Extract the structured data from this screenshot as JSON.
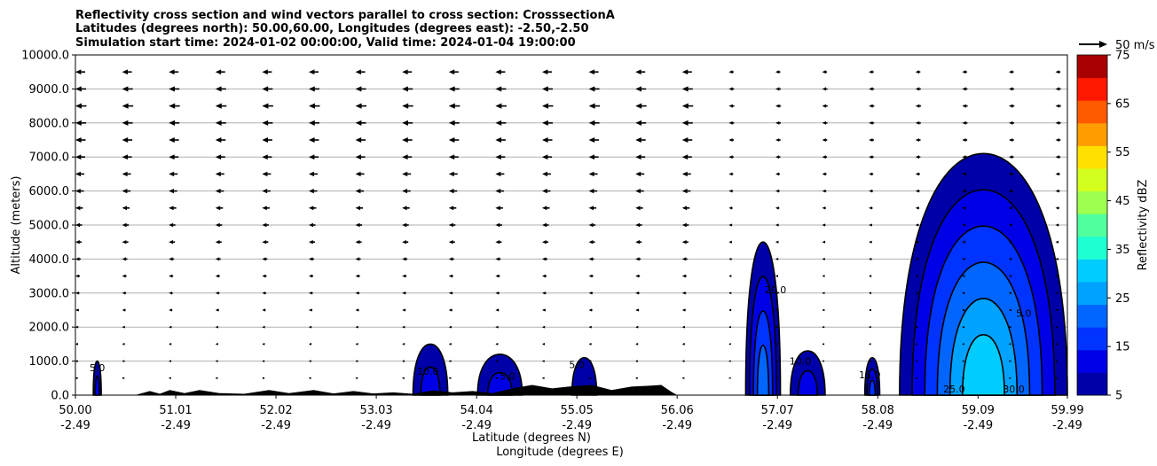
{
  "chart_data": {
    "type": "heatmap",
    "title_lines": [
      "Reflectivity cross section and wind vectors parallel to cross section: CrosssectionA",
      "Latitudes (degrees north): 50.00,60.00, Longitudes (degrees east): -2.50,-2.50",
      "Simulation start time: 2024-01-02 00:00:00, Valid time: 2024-01-04 19:00:00"
    ],
    "ylabel": "Altitude (meters)",
    "xlabel_lat": "Latitude (degrees N)",
    "xlabel_lon": "Longitude (degrees E)",
    "ylim": [
      0,
      10000
    ],
    "xlim": [
      50.0,
      59.99
    ],
    "y_ticks": [
      "0.0",
      "1000.0",
      "2000.0",
      "3000.0",
      "4000.0",
      "5000.0",
      "6000.0",
      "7000.0",
      "8000.0",
      "9000.0",
      "10000.0"
    ],
    "x_ticks": [
      {
        "lat": "50.00",
        "lon": "-2.49",
        "value": 50.0
      },
      {
        "lat": "51.01",
        "lon": "-2.49",
        "value": 51.01
      },
      {
        "lat": "52.02",
        "lon": "-2.49",
        "value": 52.02
      },
      {
        "lat": "53.03",
        "lon": "-2.49",
        "value": 53.03
      },
      {
        "lat": "54.04",
        "lon": "-2.49",
        "value": 54.04
      },
      {
        "lat": "55.05",
        "lon": "-2.49",
        "value": 55.05
      },
      {
        "lat": "56.06",
        "lon": "-2.49",
        "value": 56.06
      },
      {
        "lat": "57.07",
        "lon": "-2.49",
        "value": 57.07
      },
      {
        "lat": "58.08",
        "lon": "-2.49",
        "value": 58.08
      },
      {
        "lat": "59.09",
        "lon": "-2.49",
        "value": 59.09
      },
      {
        "lat": "59.99",
        "lon": "-2.49",
        "value": 59.99
      }
    ],
    "grid": "horizontal",
    "colorbar": {
      "label": "Reflectivity dBZ",
      "levels": [
        5,
        10,
        15,
        20,
        25,
        30,
        35,
        40,
        45,
        50,
        55,
        60,
        65,
        70,
        75
      ],
      "tick_labels": [
        "5",
        "15",
        "25",
        "35",
        "45",
        "55",
        "65",
        "75"
      ],
      "colors": [
        "#0000a8",
        "#0000e6",
        "#0033ff",
        "#0066ff",
        "#00a2ff",
        "#00ccff",
        "#1effd2",
        "#50ff9e",
        "#9eff50",
        "#d2ff1e",
        "#ffe000",
        "#ff9c00",
        "#ff5a00",
        "#ff1800",
        "#a80000"
      ]
    },
    "wind_reference": {
      "label": "50 m/s",
      "speed": 50
    },
    "wind_vectors": {
      "direction": "left",
      "levels_m": [
        500,
        1000,
        1500,
        2000,
        2500,
        3000,
        3500,
        4000,
        4500,
        5000,
        5500,
        6000,
        6500,
        7000,
        7500,
        8000,
        8500,
        9000,
        9500
      ],
      "columns_lat": [
        50.0,
        50.47,
        50.94,
        51.41,
        51.88,
        52.35,
        52.82,
        53.29,
        53.76,
        54.23,
        54.7,
        55.17,
        55.64,
        56.11,
        56.58,
        57.05,
        57.52,
        57.99,
        58.46,
        58.93,
        59.4,
        59.87
      ],
      "speed_by_level": [
        3,
        4,
        5,
        6,
        8,
        9,
        10,
        12,
        14,
        15,
        17,
        19,
        20,
        22,
        23,
        24,
        25,
        24,
        22
      ]
    },
    "terrain": [
      [
        50.0,
        0
      ],
      [
        50.6,
        0
      ],
      [
        50.75,
        120
      ],
      [
        50.85,
        40
      ],
      [
        50.95,
        150
      ],
      [
        51.1,
        60
      ],
      [
        51.25,
        150
      ],
      [
        51.45,
        60
      ],
      [
        51.7,
        40
      ],
      [
        51.95,
        150
      ],
      [
        52.15,
        60
      ],
      [
        52.4,
        150
      ],
      [
        52.6,
        50
      ],
      [
        52.8,
        120
      ],
      [
        53.0,
        50
      ],
      [
        53.2,
        80
      ],
      [
        53.4,
        40
      ],
      [
        53.6,
        140
      ],
      [
        53.8,
        80
      ],
      [
        54.0,
        120
      ],
      [
        54.2,
        60
      ],
      [
        54.4,
        200
      ],
      [
        54.6,
        300
      ],
      [
        54.8,
        200
      ],
      [
        55.0,
        260
      ],
      [
        55.2,
        300
      ],
      [
        55.4,
        150
      ],
      [
        55.6,
        250
      ],
      [
        55.8,
        280
      ],
      [
        55.9,
        300
      ],
      [
        56.0,
        100
      ],
      [
        56.06,
        0
      ],
      [
        59.99,
        0
      ]
    ],
    "echo_cells": [
      {
        "lat_range": [
          50.18,
          50.26
        ],
        "top_m": 1000,
        "max_dbz": 10
      },
      {
        "lat_range": [
          53.4,
          53.75
        ],
        "top_m": 1500,
        "max_dbz": 10
      },
      {
        "lat_range": [
          54.05,
          54.5
        ],
        "top_m": 1200,
        "max_dbz": 10
      },
      {
        "lat_range": [
          55.0,
          55.25
        ],
        "top_m": 1100,
        "max_dbz": 5
      },
      {
        "lat_range": [
          56.75,
          57.1
        ],
        "top_m": 4500,
        "max_dbz": 20
      },
      {
        "lat_range": [
          57.2,
          57.55
        ],
        "top_m": 1300,
        "max_dbz": 10
      },
      {
        "lat_range": [
          57.95,
          58.1
        ],
        "top_m": 1100,
        "max_dbz": 15
      },
      {
        "lat_range": [
          58.3,
          59.99
        ],
        "top_m": 7100,
        "max_dbz": 30
      }
    ],
    "contour_labels": [
      "5.0",
      "10.0",
      "15.0",
      "20.0",
      "25.0",
      "30.0"
    ]
  }
}
